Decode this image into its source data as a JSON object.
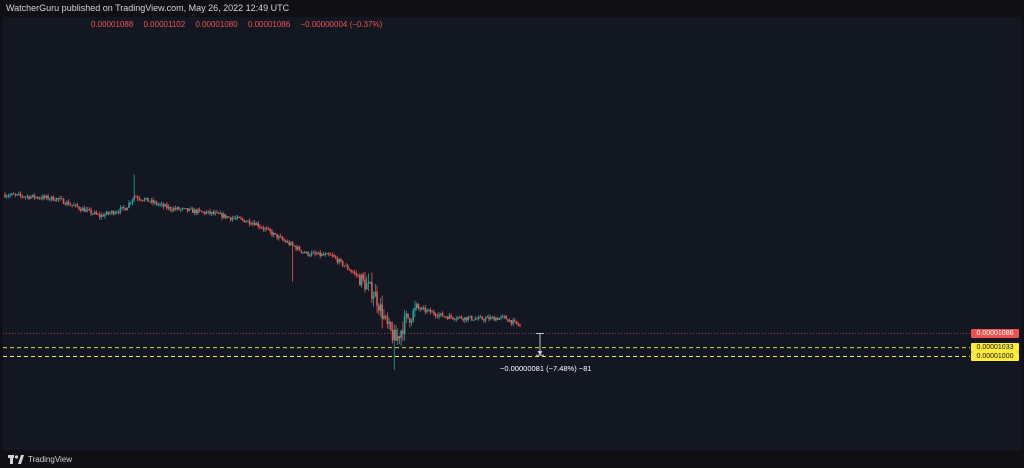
{
  "header": {
    "published": "WatcherGuru published on TradingView.com, May 26, 2022 12:49 UTC"
  },
  "ohlc": {
    "open": "0.00001088",
    "high": "0.00001102",
    "low": "0.00001080",
    "close": "0.00001086",
    "change": "−0.00000004 (−0.37%)"
  },
  "price_badges": {
    "last": "0.00001086",
    "level_upper": "0.00001033",
    "level_lower": "0.00001000"
  },
  "measure_label": "−0.00000081 (−7.48%) −81",
  "footer": {
    "logo_text": "TradingView",
    "logo_icon": "tradingview-logo-icon"
  },
  "colors": {
    "background": "#131722",
    "up": "#26a69a",
    "down": "#ef5350",
    "level_line": "#ffeb3b",
    "last_price_line": "#ef5350"
  },
  "chart_data": {
    "type": "candlestick",
    "title": "",
    "xlabel": "",
    "ylabel": "",
    "ylim": [
      9e-06,
      1.7e-05
    ],
    "horizontal_lines": [
      {
        "value": 1.086e-05,
        "style": "dotted",
        "color": "#ef5350"
      },
      {
        "value": 1.033e-05,
        "style": "dashed",
        "color": "#ffeb3b"
      },
      {
        "value": 1e-05,
        "style": "dashed",
        "color": "#ffeb3b"
      }
    ],
    "trend_anchors": [
      [
        0,
        1.605e-05
      ],
      [
        30,
        1.59e-05
      ],
      [
        55,
        1.525e-05
      ],
      [
        70,
        1.555e-05
      ],
      [
        75,
        1.6e-05
      ],
      [
        95,
        1.555e-05
      ],
      [
        120,
        1.535e-05
      ],
      [
        145,
        1.5e-05
      ],
      [
        160,
        1.44e-05
      ],
      [
        175,
        1.385e-05
      ],
      [
        190,
        1.375e-05
      ],
      [
        205,
        1.3e-05
      ],
      [
        215,
        1.23e-05
      ],
      [
        222,
        1.11e-05
      ],
      [
        227,
        1.06e-05
      ],
      [
        233,
        1.14e-05
      ],
      [
        240,
        1.18e-05
      ],
      [
        255,
        1.15e-05
      ],
      [
        275,
        1.14e-05
      ],
      [
        290,
        1.145e-05
      ],
      [
        300,
        1.11e-05
      ]
    ],
    "candle_count": 300
  }
}
